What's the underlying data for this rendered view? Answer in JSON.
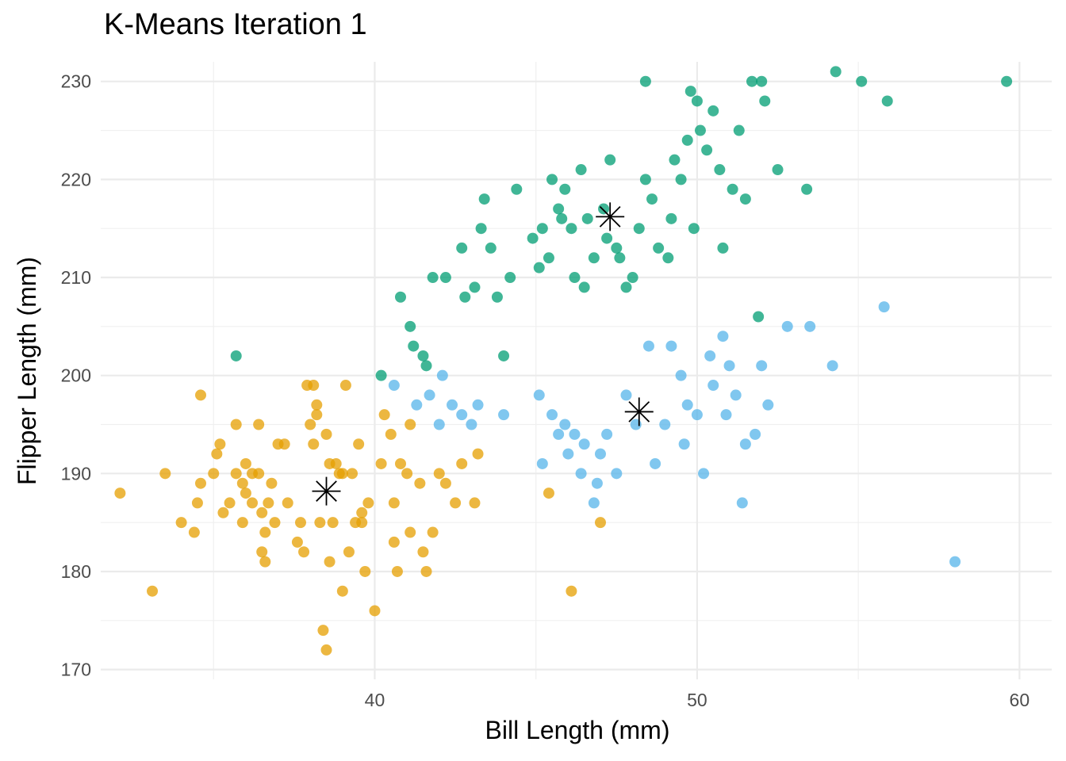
{
  "chart_data": {
    "type": "scatter",
    "title": "K-Means Iteration 1",
    "xlabel": "Bill Length (mm)",
    "ylabel": "Flipper Length (mm)",
    "xlim": [
      31.5,
      61
    ],
    "ylim": [
      169,
      232
    ],
    "x_ticks": [
      40,
      50,
      60
    ],
    "y_ticks": [
      170,
      180,
      190,
      200,
      210,
      220,
      230
    ],
    "grid": true,
    "legend": "none",
    "series": [
      {
        "color": "#E69F00",
        "points": [
          [
            32.1,
            188
          ],
          [
            33.1,
            178
          ],
          [
            33.5,
            190
          ],
          [
            34.0,
            185
          ],
          [
            34.4,
            184
          ],
          [
            34.5,
            187
          ],
          [
            34.6,
            198
          ],
          [
            34.6,
            189
          ],
          [
            35.0,
            190
          ],
          [
            35.1,
            192
          ],
          [
            35.2,
            193
          ],
          [
            35.3,
            186
          ],
          [
            35.5,
            187
          ],
          [
            35.7,
            195
          ],
          [
            35.7,
            190
          ],
          [
            35.9,
            189
          ],
          [
            35.9,
            185
          ],
          [
            36.0,
            191
          ],
          [
            36.0,
            188
          ],
          [
            36.2,
            187
          ],
          [
            36.2,
            190
          ],
          [
            36.4,
            195
          ],
          [
            36.4,
            190
          ],
          [
            36.5,
            186
          ],
          [
            36.5,
            182
          ],
          [
            36.6,
            184
          ],
          [
            36.6,
            181
          ],
          [
            36.7,
            187
          ],
          [
            36.8,
            189
          ],
          [
            36.9,
            185
          ],
          [
            37.0,
            193
          ],
          [
            37.2,
            193
          ],
          [
            37.3,
            187
          ],
          [
            37.6,
            183
          ],
          [
            37.7,
            185
          ],
          [
            37.8,
            182
          ],
          [
            37.9,
            199
          ],
          [
            38.0,
            195
          ],
          [
            38.1,
            193
          ],
          [
            38.1,
            199
          ],
          [
            38.2,
            197
          ],
          [
            38.3,
            185
          ],
          [
            38.5,
            194
          ],
          [
            38.6,
            191
          ],
          [
            38.6,
            181
          ],
          [
            38.7,
            185
          ],
          [
            38.8,
            191
          ],
          [
            38.9,
            190
          ],
          [
            39.0,
            178
          ],
          [
            39.1,
            199
          ],
          [
            39.2,
            182
          ],
          [
            39.3,
            190
          ],
          [
            39.4,
            185
          ],
          [
            39.5,
            193
          ],
          [
            39.6,
            185
          ],
          [
            39.7,
            180
          ],
          [
            39.8,
            187
          ],
          [
            40.0,
            176
          ],
          [
            40.2,
            191
          ],
          [
            40.3,
            196
          ],
          [
            40.5,
            194
          ],
          [
            40.6,
            183
          ],
          [
            40.8,
            191
          ],
          [
            41.0,
            190
          ],
          [
            41.1,
            195
          ],
          [
            41.4,
            189
          ],
          [
            41.5,
            182
          ],
          [
            41.6,
            180
          ],
          [
            41.8,
            184
          ],
          [
            42.0,
            190
          ],
          [
            42.2,
            189
          ],
          [
            42.5,
            187
          ],
          [
            42.7,
            191
          ],
          [
            43.1,
            187
          ],
          [
            43.2,
            192
          ],
          [
            45.4,
            188
          ],
          [
            46.1,
            178
          ],
          [
            47.0,
            185
          ],
          [
            38.2,
            196
          ],
          [
            38.4,
            174
          ],
          [
            38.5,
            172
          ],
          [
            39.0,
            190
          ],
          [
            39.6,
            186
          ],
          [
            40.6,
            187
          ],
          [
            40.7,
            180
          ],
          [
            41.1,
            184
          ]
        ]
      },
      {
        "color": "#56B4E9",
        "points": [
          [
            40.6,
            199
          ],
          [
            41.3,
            197
          ],
          [
            41.7,
            198
          ],
          [
            42.0,
            195
          ],
          [
            42.1,
            200
          ],
          [
            42.4,
            197
          ],
          [
            42.7,
            196
          ],
          [
            43.0,
            195
          ],
          [
            43.2,
            197
          ],
          [
            44.0,
            196
          ],
          [
            45.1,
            198
          ],
          [
            45.2,
            191
          ],
          [
            45.5,
            196
          ],
          [
            45.7,
            194
          ],
          [
            45.9,
            195
          ],
          [
            46.0,
            192
          ],
          [
            46.2,
            194
          ],
          [
            46.4,
            190
          ],
          [
            46.5,
            193
          ],
          [
            46.8,
            187
          ],
          [
            47.0,
            192
          ],
          [
            47.2,
            194
          ],
          [
            47.5,
            190
          ],
          [
            47.8,
            198
          ],
          [
            48.1,
            195
          ],
          [
            48.5,
            203
          ],
          [
            48.7,
            191
          ],
          [
            49.0,
            195
          ],
          [
            49.2,
            203
          ],
          [
            49.5,
            200
          ],
          [
            49.7,
            197
          ],
          [
            50.0,
            196
          ],
          [
            50.2,
            190
          ],
          [
            50.4,
            202
          ],
          [
            50.5,
            199
          ],
          [
            50.8,
            204
          ],
          [
            51.0,
            201
          ],
          [
            51.2,
            198
          ],
          [
            51.5,
            193
          ],
          [
            51.8,
            194
          ],
          [
            52.0,
            201
          ],
          [
            52.2,
            197
          ],
          [
            52.8,
            205
          ],
          [
            53.5,
            205
          ],
          [
            54.2,
            201
          ],
          [
            55.8,
            207
          ],
          [
            58.0,
            181
          ],
          [
            51.4,
            187
          ],
          [
            46.9,
            189
          ],
          [
            49.6,
            193
          ],
          [
            50.9,
            196
          ]
        ]
      },
      {
        "color": "#009E73",
        "points": [
          [
            35.7,
            202
          ],
          [
            40.2,
            200
          ],
          [
            40.8,
            208
          ],
          [
            41.1,
            205
          ],
          [
            41.2,
            203
          ],
          [
            41.5,
            202
          ],
          [
            41.6,
            201
          ],
          [
            41.8,
            210
          ],
          [
            42.2,
            210
          ],
          [
            42.7,
            213
          ],
          [
            42.8,
            208
          ],
          [
            43.1,
            209
          ],
          [
            43.3,
            215
          ],
          [
            43.4,
            218
          ],
          [
            43.6,
            213
          ],
          [
            43.8,
            208
          ],
          [
            44.0,
            202
          ],
          [
            44.2,
            210
          ],
          [
            44.4,
            219
          ],
          [
            44.9,
            214
          ],
          [
            45.1,
            211
          ],
          [
            45.2,
            215
          ],
          [
            45.4,
            212
          ],
          [
            45.5,
            220
          ],
          [
            45.7,
            217
          ],
          [
            45.9,
            219
          ],
          [
            46.1,
            215
          ],
          [
            46.2,
            210
          ],
          [
            46.4,
            221
          ],
          [
            46.6,
            216
          ],
          [
            46.8,
            212
          ],
          [
            47.1,
            217
          ],
          [
            47.3,
            222
          ],
          [
            47.5,
            213
          ],
          [
            47.6,
            212
          ],
          [
            47.8,
            209
          ],
          [
            48.0,
            210
          ],
          [
            48.2,
            215
          ],
          [
            48.4,
            220
          ],
          [
            48.6,
            218
          ],
          [
            48.8,
            213
          ],
          [
            49.1,
            212
          ],
          [
            49.2,
            216
          ],
          [
            49.3,
            222
          ],
          [
            49.5,
            220
          ],
          [
            49.7,
            224
          ],
          [
            49.9,
            215
          ],
          [
            50.0,
            228
          ],
          [
            50.1,
            225
          ],
          [
            50.3,
            223
          ],
          [
            50.5,
            227
          ],
          [
            50.7,
            221
          ],
          [
            50.8,
            213
          ],
          [
            51.1,
            219
          ],
          [
            51.3,
            225
          ],
          [
            51.5,
            218
          ],
          [
            51.7,
            230
          ],
          [
            51.9,
            206
          ],
          [
            52.1,
            228
          ],
          [
            52.5,
            221
          ],
          [
            53.4,
            219
          ],
          [
            54.3,
            231
          ],
          [
            55.1,
            230
          ],
          [
            55.9,
            228
          ],
          [
            59.6,
            230
          ],
          [
            48.4,
            230
          ],
          [
            49.8,
            229
          ],
          [
            52.0,
            230
          ],
          [
            46.5,
            209
          ],
          [
            45.8,
            216
          ],
          [
            47.2,
            214
          ]
        ]
      }
    ],
    "centroids": [
      {
        "x": 38.5,
        "y": 188.2,
        "marker": "asterisk"
      },
      {
        "x": 47.3,
        "y": 216.2,
        "marker": "asterisk"
      },
      {
        "x": 48.2,
        "y": 196.3,
        "marker": "asterisk"
      }
    ]
  }
}
